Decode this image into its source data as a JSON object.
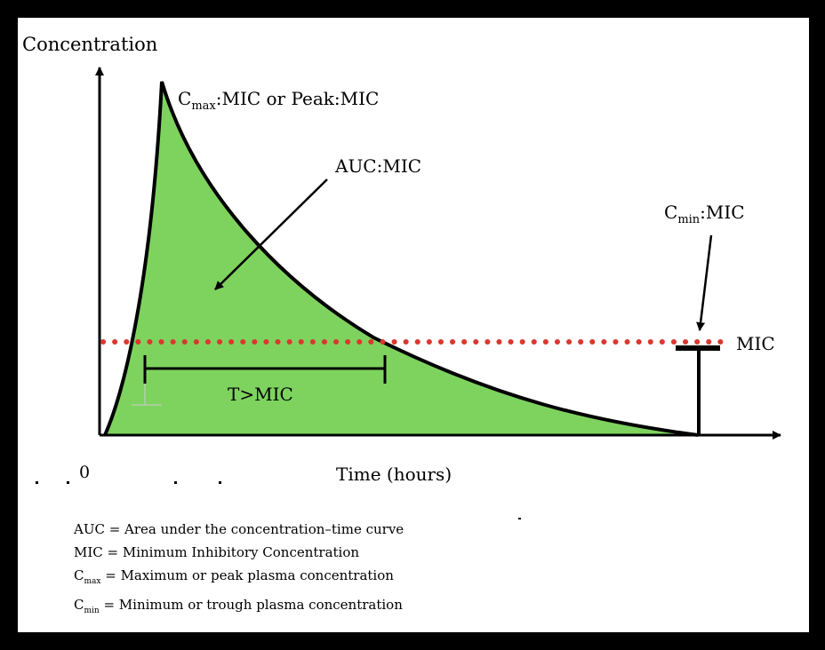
{
  "labels": {
    "y_axis": "Concentration",
    "x_axis": "Time (hours)",
    "origin": "0",
    "cmax_letter": "C",
    "cmax_sub": "max",
    "cmax_rest": ":MIC or Peak:MIC",
    "auc": "AUC:MIC",
    "cmin_letter": "C",
    "cmin_sub": "min",
    "cmin_rest": ":MIC",
    "mic": "MIC",
    "t_mic": "T>MIC"
  },
  "legend": {
    "auc": "AUC = Area under the concentration–time curve",
    "mic": "MIC = Minimum Inhibitory Concentration",
    "cmax_letter": "C",
    "cmax_sub": "max",
    "cmax_rest": " = Maximum or peak plasma concentration",
    "cmin_letter": "C",
    "cmin_sub": "min",
    "cmin_rest": " = Minimum or trough plasma concentration"
  },
  "colors": {
    "area_fill": "#7ed35f",
    "mic_line": "#d9382f",
    "ink": "#000000",
    "frame": "#000000"
  }
}
